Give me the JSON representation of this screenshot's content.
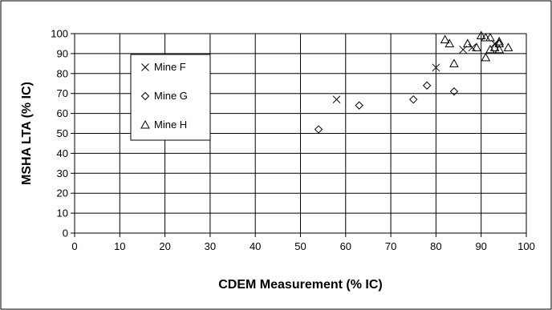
{
  "chart_data": {
    "type": "scatter",
    "xlabel": "CDEM Measurement (% IC)",
    "ylabel": "MSHA LTA (% IC)",
    "xlim": [
      0,
      100
    ],
    "ylim": [
      0,
      100
    ],
    "x_ticks": [
      0,
      10,
      20,
      30,
      40,
      50,
      60,
      70,
      80,
      90,
      100
    ],
    "y_ticks": [
      0,
      10,
      20,
      30,
      40,
      50,
      60,
      70,
      80,
      90,
      100
    ],
    "grid": "horizontal and vertical",
    "legend_placement": "upper-left",
    "series": [
      {
        "name": "Mine F",
        "marker": "x",
        "points": [
          [
            58,
            67
          ],
          [
            80,
            83
          ],
          [
            86,
            92
          ],
          [
            88,
            93
          ],
          [
            93,
            95
          ]
        ]
      },
      {
        "name": "Mine G",
        "marker": "diamond",
        "points": [
          [
            54,
            52
          ],
          [
            63,
            64
          ],
          [
            75,
            67
          ],
          [
            78,
            74
          ],
          [
            84,
            71
          ]
        ]
      },
      {
        "name": "Mine H",
        "marker": "triangle",
        "points": [
          [
            82,
            97
          ],
          [
            83,
            95
          ],
          [
            84,
            85
          ],
          [
            87,
            95
          ],
          [
            89,
            93
          ],
          [
            90,
            99
          ],
          [
            91,
            98
          ],
          [
            91,
            88
          ],
          [
            92,
            98
          ],
          [
            92,
            92
          ],
          [
            93,
            93
          ],
          [
            94,
            96
          ],
          [
            94,
            95
          ],
          [
            94,
            92
          ],
          [
            96,
            93
          ]
        ]
      }
    ]
  }
}
